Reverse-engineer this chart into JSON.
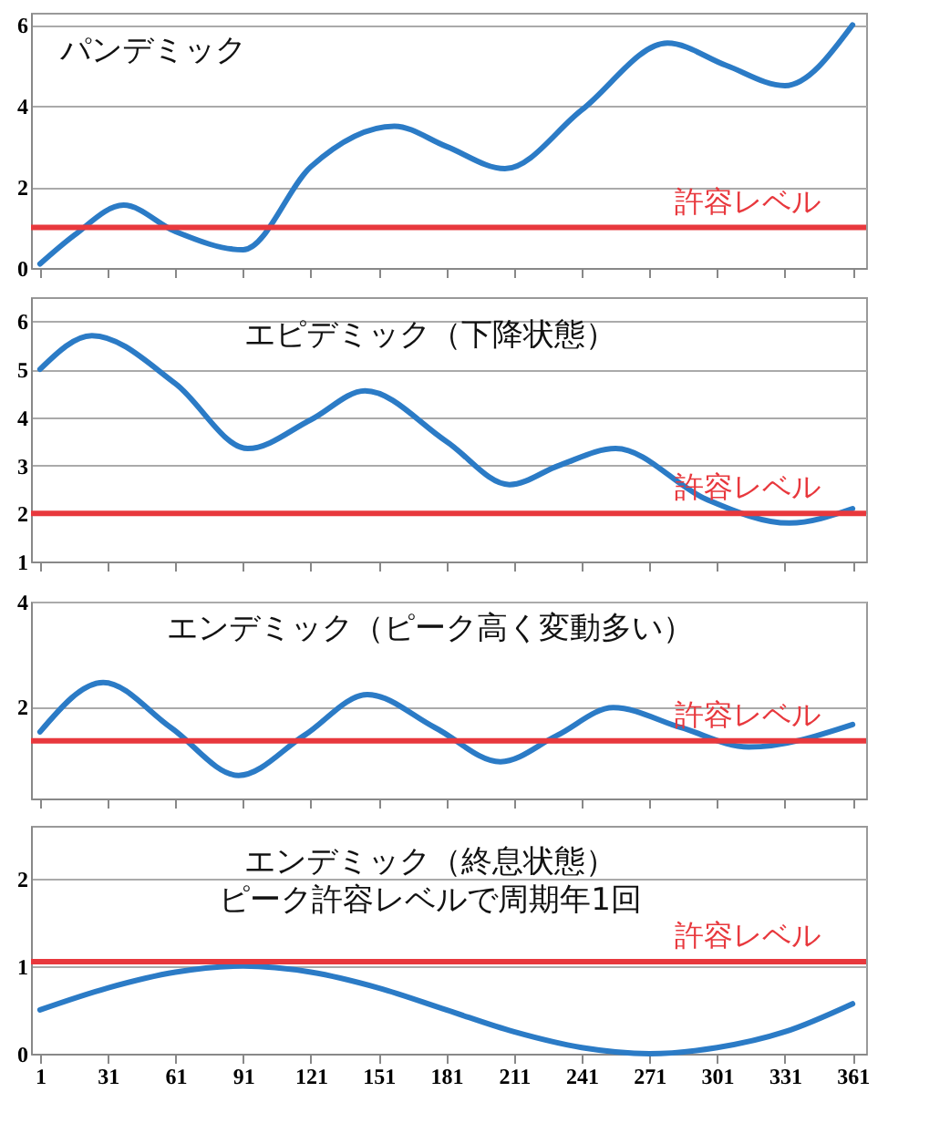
{
  "chart_data": [
    {
      "type": "line",
      "title": "パンデミック",
      "x": [
        1,
        16,
        38,
        61,
        91,
        121,
        158,
        181,
        207,
        241,
        279,
        305,
        331,
        361
      ],
      "series": [
        {
          "color": "#2b7bc6",
          "values": [
            0.1,
            0.8,
            1.55,
            0.9,
            0.45,
            2.5,
            3.5,
            3.0,
            2.45,
            3.9,
            5.55,
            5.0,
            4.5,
            6.0
          ]
        }
      ],
      "xlim": [
        -3,
        367
      ],
      "xticks": [
        1,
        31,
        61,
        91,
        121,
        151,
        181,
        211,
        241,
        271,
        301,
        331,
        361
      ],
      "ylim": [
        0,
        6.3
      ],
      "yticks": [
        0,
        2,
        4,
        6
      ],
      "grid": "y",
      "tick_labels": "y",
      "ref_lines": [
        {
          "axis": "y",
          "value": 1,
          "label": "許容レベル",
          "color": "#e8383d"
        }
      ]
    },
    {
      "type": "line",
      "title": "エピデミック（下降状態）",
      "x": [
        1,
        24,
        61,
        93,
        121,
        145,
        181,
        209,
        231,
        256,
        296,
        333,
        361
      ],
      "series": [
        {
          "color": "#2b7bc6",
          "values": [
            5.0,
            5.7,
            4.7,
            3.35,
            3.95,
            4.55,
            3.5,
            2.6,
            3.0,
            3.35,
            2.3,
            1.8,
            2.1
          ]
        }
      ],
      "xlim": [
        -3,
        367
      ],
      "xticks": [
        1,
        31,
        61,
        91,
        121,
        151,
        181,
        211,
        241,
        271,
        301,
        331,
        361
      ],
      "ylim": [
        1,
        6.5
      ],
      "yticks": [
        1,
        2,
        3,
        4,
        5,
        6
      ],
      "grid": "y",
      "tick_labels": "y",
      "ref_lines": [
        {
          "axis": "y",
          "value": 2,
          "label": "許容レベル",
          "color": "#e8383d"
        }
      ]
    },
    {
      "type": "line",
      "title": "エンデミック（ピーク高く変動多い）",
      "x": [
        1,
        29,
        59,
        89,
        118,
        146,
        176,
        205,
        230,
        255,
        285,
        315,
        361
      ],
      "series": [
        {
          "color": "#2b7bc6",
          "values": [
            1.52,
            2.46,
            1.6,
            0.69,
            1.45,
            2.23,
            1.6,
            0.95,
            1.45,
            1.98,
            1.6,
            1.23,
            1.66
          ]
        }
      ],
      "xlim": [
        -3,
        367
      ],
      "xticks": [
        1,
        31,
        61,
        91,
        121,
        151,
        181,
        211,
        241,
        271,
        301,
        331,
        361
      ],
      "ylim": [
        0.25,
        4
      ],
      "yticks": [
        2,
        4
      ],
      "grid": "y",
      "tick_labels": "y",
      "ref_lines": [
        {
          "axis": "y",
          "value": 1.35,
          "label": "許容レベル",
          "color": "#e8383d"
        }
      ]
    },
    {
      "type": "line",
      "title": "エンデミック（終息状態）",
      "subtitle": "ピーク許容レベルで周期年1回",
      "x": [
        1,
        31,
        61,
        91,
        121,
        151,
        181,
        211,
        241,
        271,
        301,
        331,
        361
      ],
      "series": [
        {
          "color": "#2b7bc6",
          "values": [
            0.5,
            0.75,
            0.93,
            1.0,
            0.93,
            0.75,
            0.5,
            0.25,
            0.07,
            0,
            0.07,
            0.25,
            0.57
          ]
        }
      ],
      "xlim": [
        -3,
        367
      ],
      "xticks": [
        1,
        31,
        61,
        91,
        121,
        151,
        181,
        211,
        241,
        271,
        301,
        331,
        361
      ],
      "ylim": [
        0,
        2.6
      ],
      "yticks": [
        0,
        1,
        2
      ],
      "grid": "y",
      "ref_lines": [
        {
          "axis": "y",
          "value": 1.05,
          "label": "許容レベル",
          "color": "#e8383d"
        }
      ]
    }
  ]
}
